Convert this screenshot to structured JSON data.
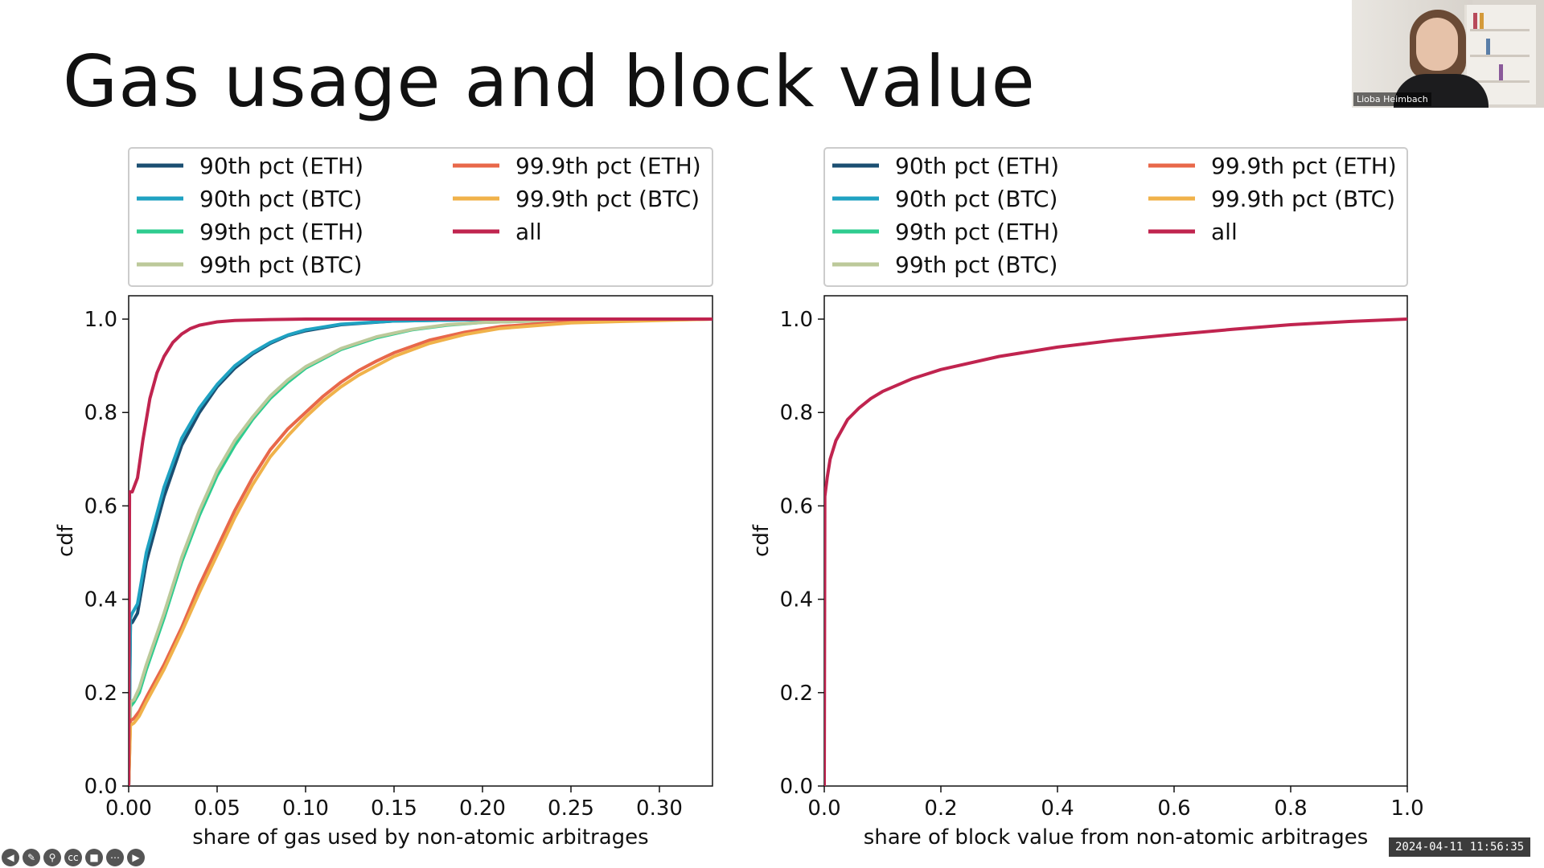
{
  "slide": {
    "title": "Gas usage and block value"
  },
  "webcam": {
    "name": "Lioba Heimbach"
  },
  "timestamp": "2024-04-11  11:56:35",
  "toolbar": {
    "icons": [
      "prev-icon",
      "pen-icon",
      "zoom-icon",
      "captions-icon",
      "camera-icon",
      "more-icon",
      "next-icon"
    ],
    "glyphs": [
      "◀",
      "✎",
      "⚲",
      "cc",
      "■",
      "⋯",
      "▶"
    ]
  },
  "legend": [
    {
      "name": "90th pct (ETH)",
      "color": "#1b4f72"
    },
    {
      "name": "90th pct (BTC)",
      "color": "#1fa2c2"
    },
    {
      "name": "99th pct (ETH)",
      "color": "#2ecc8f"
    },
    {
      "name": "99th pct (BTC)",
      "color": "#bcc99a"
    },
    {
      "name": "99.9th pct (ETH)",
      "color": "#e8684a"
    },
    {
      "name": "99.9th pct (BTC)",
      "color": "#f0b24a"
    },
    {
      "name": "all",
      "color": "#c0244f"
    }
  ],
  "chart_data": [
    {
      "type": "line",
      "xlabel": "share of gas used by non-atomic arbitrages",
      "ylabel": "cdf",
      "xlim": [
        0,
        0.33
      ],
      "ylim": [
        0,
        1.05
      ],
      "xticks": [
        "0.00",
        "0.05",
        "0.10",
        "0.15",
        "0.20",
        "0.25",
        "0.30"
      ],
      "xtick_values": [
        0,
        0.05,
        0.1,
        0.15,
        0.2,
        0.25,
        0.3
      ],
      "yticks": [
        "0.0",
        "0.2",
        "0.4",
        "0.6",
        "0.8",
        "1.0"
      ],
      "ytick_values": [
        0,
        0.2,
        0.4,
        0.6,
        0.8,
        1.0
      ],
      "legend_position": "above",
      "series": [
        {
          "name": "90th pct (ETH)",
          "color": "#1b4f72",
          "x": [
            0,
            0.001,
            0.002,
            0.005,
            0.01,
            0.02,
            0.03,
            0.04,
            0.05,
            0.06,
            0.07,
            0.08,
            0.09,
            0.1,
            0.12,
            0.15,
            0.2,
            0.25,
            0.33
          ],
          "y": [
            0,
            0.35,
            0.35,
            0.37,
            0.48,
            0.62,
            0.73,
            0.8,
            0.855,
            0.895,
            0.925,
            0.948,
            0.965,
            0.975,
            0.988,
            0.996,
            0.999,
            1.0,
            1.0
          ]
        },
        {
          "name": "90th pct (BTC)",
          "color": "#1fa2c2",
          "x": [
            0,
            0.001,
            0.002,
            0.005,
            0.01,
            0.02,
            0.03,
            0.04,
            0.05,
            0.06,
            0.07,
            0.08,
            0.09,
            0.1,
            0.12,
            0.15,
            0.2,
            0.25,
            0.33
          ],
          "y": [
            0,
            0.36,
            0.37,
            0.39,
            0.5,
            0.64,
            0.745,
            0.81,
            0.86,
            0.9,
            0.928,
            0.95,
            0.966,
            0.977,
            0.989,
            0.996,
            0.999,
            1.0,
            1.0
          ]
        },
        {
          "name": "99th pct (ETH)",
          "color": "#2ecc8f",
          "x": [
            0,
            0.001,
            0.003,
            0.006,
            0.01,
            0.02,
            0.03,
            0.04,
            0.05,
            0.06,
            0.07,
            0.08,
            0.09,
            0.1,
            0.12,
            0.14,
            0.16,
            0.18,
            0.2,
            0.25,
            0.33
          ],
          "y": [
            0,
            0.17,
            0.18,
            0.2,
            0.25,
            0.36,
            0.48,
            0.58,
            0.665,
            0.73,
            0.785,
            0.83,
            0.865,
            0.895,
            0.935,
            0.96,
            0.977,
            0.987,
            0.993,
            0.998,
            1.0
          ]
        },
        {
          "name": "99th pct (BTC)",
          "color": "#bcc99a",
          "x": [
            0,
            0.001,
            0.003,
            0.006,
            0.01,
            0.02,
            0.03,
            0.04,
            0.05,
            0.06,
            0.07,
            0.08,
            0.09,
            0.1,
            0.12,
            0.14,
            0.16,
            0.18,
            0.2,
            0.25,
            0.33
          ],
          "y": [
            0,
            0.18,
            0.185,
            0.21,
            0.26,
            0.37,
            0.49,
            0.59,
            0.675,
            0.74,
            0.79,
            0.835,
            0.87,
            0.898,
            0.937,
            0.962,
            0.978,
            0.988,
            0.993,
            0.998,
            1.0
          ]
        },
        {
          "name": "99.9th pct (ETH)",
          "color": "#e8684a",
          "x": [
            0,
            0.001,
            0.003,
            0.006,
            0.01,
            0.02,
            0.03,
            0.04,
            0.05,
            0.06,
            0.07,
            0.08,
            0.09,
            0.1,
            0.11,
            0.12,
            0.13,
            0.14,
            0.15,
            0.17,
            0.19,
            0.21,
            0.25,
            0.33
          ],
          "y": [
            0,
            0.14,
            0.145,
            0.16,
            0.19,
            0.26,
            0.34,
            0.43,
            0.51,
            0.59,
            0.66,
            0.72,
            0.765,
            0.8,
            0.835,
            0.865,
            0.89,
            0.91,
            0.928,
            0.955,
            0.972,
            0.984,
            0.995,
            1.0
          ]
        },
        {
          "name": "99.9th pct (BTC)",
          "color": "#f0b24a",
          "x": [
            0,
            0.001,
            0.003,
            0.006,
            0.01,
            0.02,
            0.03,
            0.04,
            0.05,
            0.06,
            0.07,
            0.08,
            0.09,
            0.1,
            0.11,
            0.12,
            0.13,
            0.14,
            0.15,
            0.17,
            0.19,
            0.21,
            0.25,
            0.33
          ],
          "y": [
            0,
            0.13,
            0.135,
            0.15,
            0.18,
            0.25,
            0.33,
            0.415,
            0.495,
            0.575,
            0.645,
            0.705,
            0.75,
            0.79,
            0.825,
            0.855,
            0.88,
            0.9,
            0.92,
            0.948,
            0.967,
            0.98,
            0.992,
            1.0
          ]
        },
        {
          "name": "all",
          "color": "#c0244f",
          "x": [
            0,
            0.0005,
            0.002,
            0.005,
            0.008,
            0.012,
            0.016,
            0.02,
            0.025,
            0.03,
            0.035,
            0.04,
            0.05,
            0.06,
            0.08,
            0.1,
            0.33
          ],
          "y": [
            0,
            0.63,
            0.63,
            0.66,
            0.74,
            0.83,
            0.885,
            0.92,
            0.95,
            0.968,
            0.98,
            0.987,
            0.994,
            0.997,
            0.999,
            1.0,
            1.0
          ]
        }
      ]
    },
    {
      "type": "line",
      "xlabel": "share of block value from non-atomic arbitrages",
      "ylabel": "cdf",
      "xlim": [
        0,
        1.0
      ],
      "ylim": [
        0,
        1.05
      ],
      "xticks": [
        "0.0",
        "0.2",
        "0.4",
        "0.6",
        "0.8",
        "1.0"
      ],
      "xtick_values": [
        0,
        0.2,
        0.4,
        0.6,
        0.8,
        1.0
      ],
      "yticks": [
        "0.0",
        "0.2",
        "0.4",
        "0.6",
        "0.8",
        "1.0"
      ],
      "ytick_values": [
        0,
        0.2,
        0.4,
        0.6,
        0.8,
        1.0
      ],
      "legend_position": "above",
      "series": [
        {
          "name": "all",
          "color": "#c0244f",
          "x": [
            0,
            0.001,
            0.005,
            0.01,
            0.02,
            0.04,
            0.06,
            0.08,
            0.1,
            0.15,
            0.2,
            0.3,
            0.4,
            0.5,
            0.6,
            0.7,
            0.8,
            0.9,
            1.0
          ],
          "y": [
            0,
            0.62,
            0.66,
            0.7,
            0.74,
            0.785,
            0.81,
            0.83,
            0.845,
            0.872,
            0.892,
            0.92,
            0.94,
            0.955,
            0.967,
            0.978,
            0.988,
            0.995,
            1.0
          ]
        }
      ]
    }
  ]
}
